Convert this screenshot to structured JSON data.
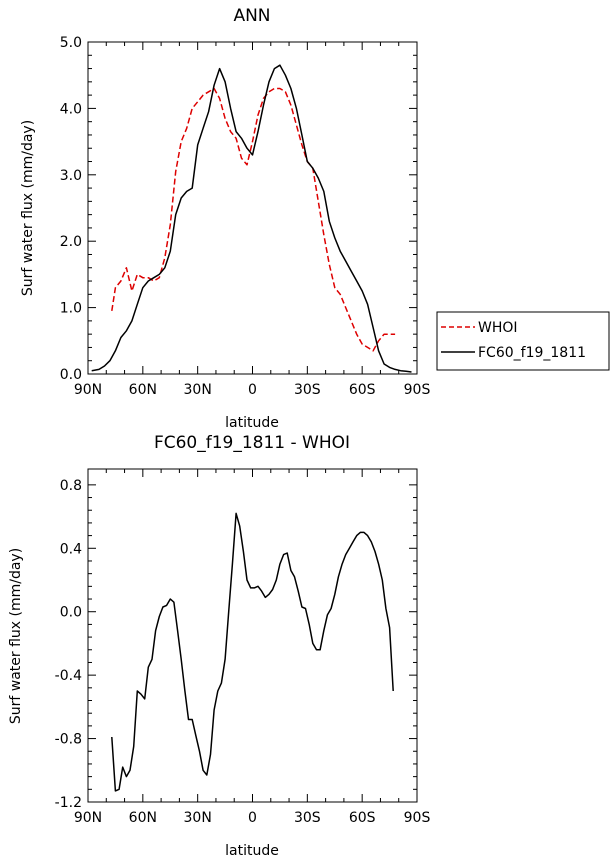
{
  "chart_data": [
    {
      "type": "line",
      "title": "ANN",
      "xlabel": "latitude",
      "ylabel": "Surf water flux (mm/day)",
      "xlim": [
        90,
        -90
      ],
      "ylim": [
        0.0,
        5.0
      ],
      "x_tick_values": [
        90,
        60,
        30,
        0,
        -30,
        -60,
        -90
      ],
      "x_tick_labels": [
        "90N",
        "60N",
        "30N",
        "0",
        "30S",
        "60S",
        "90S"
      ],
      "y_tick_values": [
        0.0,
        1.0,
        2.0,
        3.0,
        4.0,
        5.0
      ],
      "y_tick_labels": [
        "0.0",
        "1.0",
        "2.0",
        "3.0",
        "4.0",
        "5.0"
      ],
      "legend": {
        "placement": "outside-right",
        "entries": [
          "WHOI",
          "FC60_f19_1811"
        ]
      },
      "series": [
        {
          "name": "WHOI",
          "color": "#dd0000",
          "dash": "dashed",
          "x": [
            77,
            75,
            72,
            69,
            66,
            63,
            60,
            57,
            54,
            51,
            48,
            45,
            42,
            39,
            36,
            33,
            30,
            27,
            24,
            21,
            18,
            15,
            12,
            9,
            6,
            3,
            0,
            -3,
            -6,
            -9,
            -12,
            -15,
            -18,
            -21,
            -24,
            -27,
            -30,
            -33,
            -36,
            -39,
            -42,
            -45,
            -48,
            -51,
            -54,
            -57,
            -60,
            -63,
            -66,
            -69,
            -72,
            -75,
            -78
          ],
          "y": [
            0.95,
            1.3,
            1.4,
            1.6,
            1.25,
            1.5,
            1.45,
            1.45,
            1.4,
            1.45,
            1.75,
            2.25,
            3.05,
            3.5,
            3.7,
            4.0,
            4.1,
            4.2,
            4.25,
            4.3,
            4.15,
            3.85,
            3.65,
            3.55,
            3.25,
            3.15,
            3.5,
            3.9,
            4.15,
            4.25,
            4.3,
            4.3,
            4.25,
            4.05,
            3.75,
            3.45,
            3.2,
            3.1,
            2.6,
            2.1,
            1.65,
            1.3,
            1.2,
            1.0,
            0.8,
            0.6,
            0.45,
            0.4,
            0.35,
            0.5,
            0.6,
            0.6,
            0.6
          ]
        },
        {
          "name": "FC60_f19_1811",
          "color": "#000000",
          "dash": "solid",
          "x": [
            88,
            84,
            81,
            78,
            75,
            72,
            69,
            66,
            63,
            60,
            57,
            54,
            51,
            48,
            45,
            42,
            39,
            36,
            33,
            30,
            27,
            24,
            21,
            18,
            15,
            12,
            9,
            6,
            3,
            0,
            -3,
            -6,
            -9,
            -12,
            -15,
            -18,
            -21,
            -24,
            -27,
            -30,
            -33,
            -36,
            -39,
            -42,
            -45,
            -48,
            -51,
            -54,
            -57,
            -60,
            -63,
            -66,
            -69,
            -72,
            -75,
            -78,
            -81,
            -84,
            -87
          ],
          "y": [
            0.05,
            0.07,
            0.12,
            0.2,
            0.35,
            0.55,
            0.65,
            0.8,
            1.05,
            1.3,
            1.4,
            1.45,
            1.5,
            1.6,
            1.85,
            2.4,
            2.65,
            2.75,
            2.8,
            3.45,
            3.7,
            3.95,
            4.35,
            4.6,
            4.4,
            4.0,
            3.65,
            3.55,
            3.4,
            3.3,
            3.65,
            4.05,
            4.4,
            4.6,
            4.65,
            4.5,
            4.3,
            4.0,
            3.6,
            3.2,
            3.1,
            2.95,
            2.75,
            2.3,
            2.05,
            1.85,
            1.7,
            1.55,
            1.4,
            1.25,
            1.05,
            0.7,
            0.35,
            0.15,
            0.1,
            0.07,
            0.05,
            0.04,
            0.03
          ]
        }
      ]
    },
    {
      "type": "line",
      "title": "FC60_f19_1811 - WHOI",
      "xlabel": "latitude",
      "ylabel": "Surf water flux (mm/day)",
      "xlim": [
        90,
        -90
      ],
      "ylim": [
        -1.2,
        0.9
      ],
      "x_tick_values": [
        90,
        60,
        30,
        0,
        -30,
        -60,
        -90
      ],
      "x_tick_labels": [
        "90N",
        "60N",
        "30N",
        "0",
        "30S",
        "60S",
        "90S"
      ],
      "y_tick_values": [
        -1.2,
        -0.8,
        -0.4,
        0.0,
        0.4,
        0.8
      ],
      "y_tick_labels": [
        "-1.2",
        "-0.8",
        "-0.4",
        "0.0",
        "0.4",
        "0.8"
      ],
      "series": [
        {
          "name": "FC60_f19_1811 - WHOI",
          "color": "#000000",
          "dash": "solid",
          "x": [
            77,
            75,
            73,
            71,
            69,
            67,
            65,
            63,
            61,
            59,
            57,
            55,
            53,
            51,
            49,
            47,
            45,
            43,
            41,
            39,
            37,
            35,
            33,
            31,
            29,
            27,
            25,
            23,
            21,
            19,
            17,
            15,
            13,
            11,
            9,
            7,
            5,
            3,
            1,
            -1,
            -3,
            -5,
            -7,
            -9,
            -11,
            -13,
            -15,
            -17,
            -19,
            -21,
            -23,
            -25,
            -27,
            -29,
            -31,
            -33,
            -35,
            -37,
            -39,
            -41,
            -43,
            -45,
            -47,
            -49,
            -51,
            -53,
            -55,
            -57,
            -59,
            -61,
            -63,
            -65,
            -67,
            -69,
            -71,
            -73,
            -75,
            -77
          ],
          "y": [
            -0.79,
            -1.13,
            -1.12,
            -0.98,
            -1.04,
            -1.0,
            -0.85,
            -0.5,
            -0.52,
            -0.55,
            -0.35,
            -0.3,
            -0.12,
            -0.03,
            0.03,
            0.04,
            0.08,
            0.06,
            -0.12,
            -0.3,
            -0.5,
            -0.68,
            -0.68,
            -0.78,
            -0.88,
            -1.0,
            -1.03,
            -0.9,
            -0.62,
            -0.5,
            -0.45,
            -0.3,
            0.0,
            0.3,
            0.62,
            0.54,
            0.38,
            0.2,
            0.15,
            0.15,
            0.16,
            0.13,
            0.09,
            0.11,
            0.14,
            0.2,
            0.3,
            0.36,
            0.37,
            0.26,
            0.22,
            0.13,
            0.03,
            0.02,
            -0.08,
            -0.2,
            -0.24,
            -0.24,
            -0.12,
            -0.02,
            0.02,
            0.11,
            0.22,
            0.3,
            0.36,
            0.4,
            0.44,
            0.48,
            0.5,
            0.5,
            0.48,
            0.44,
            0.38,
            0.3,
            0.2,
            0.02,
            -0.1,
            -0.5
          ]
        }
      ]
    }
  ]
}
